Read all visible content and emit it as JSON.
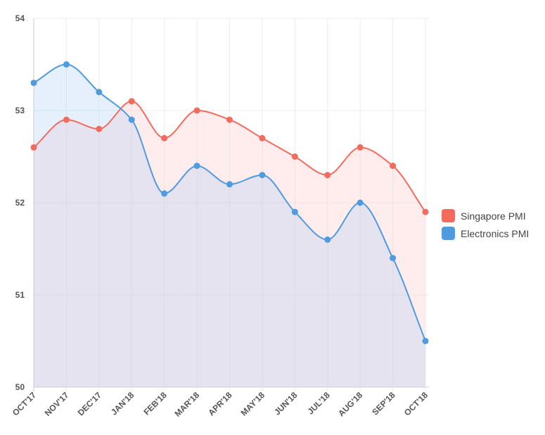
{
  "chart_data": {
    "type": "line",
    "categories": [
      "OCT'17",
      "NOV'17",
      "DEC'17",
      "JAN'18",
      "FEB'18",
      "MAR'18",
      "APR'18",
      "MAY'18",
      "JUN'18",
      "JUL'18",
      "AUG'18",
      "SEP'18",
      "OCT'18"
    ],
    "series": [
      {
        "name": "Singapore PMI",
        "color": "#f36b5d",
        "fill": "rgba(255, 206, 206, 0.38)",
        "values": [
          52.6,
          52.9,
          52.8,
          53.1,
          52.7,
          53.0,
          52.9,
          52.7,
          52.5,
          52.3,
          52.6,
          52.4,
          51.9
        ]
      },
      {
        "name": "Electronics PMI",
        "color": "#4f9be0",
        "fill": "rgba(170, 205, 245, 0.30)",
        "values": [
          53.3,
          53.5,
          53.2,
          52.9,
          52.1,
          52.4,
          52.2,
          52.3,
          51.9,
          51.6,
          52.0,
          51.4,
          50.5
        ]
      }
    ],
    "ylim": [
      50,
      54
    ],
    "yticks": [
      "50",
      "51",
      "52",
      "53",
      "54"
    ],
    "grid": true,
    "legend_position": "right",
    "smooth": true
  }
}
